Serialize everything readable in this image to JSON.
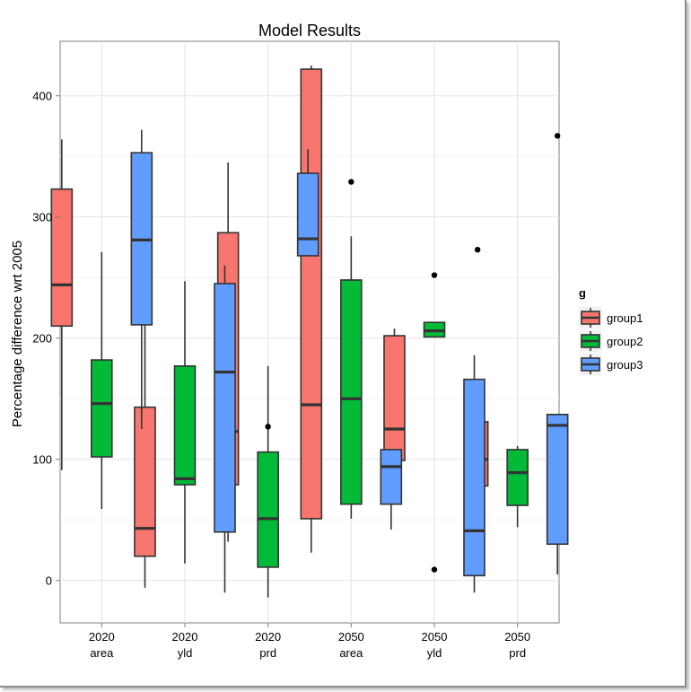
{
  "chart_data": {
    "type": "box",
    "title": "Model Results",
    "xlabel": "",
    "ylabel": "Percentage difference wrt 2005",
    "ylim": [
      -35,
      445
    ],
    "yticks": [
      0,
      100,
      200,
      300,
      400
    ],
    "grid": true,
    "legend": {
      "title": "g",
      "position": "right"
    },
    "categories": [
      {
        "year": "2020",
        "metric": "area"
      },
      {
        "year": "2020",
        "metric": "yld"
      },
      {
        "year": "2020",
        "metric": "prd"
      },
      {
        "year": "2050",
        "metric": "area"
      },
      {
        "year": "2050",
        "metric": "yld"
      },
      {
        "year": "2050",
        "metric": "prd"
      }
    ],
    "series": [
      {
        "name": "group1",
        "color": "#F8766D",
        "boxes": [
          {
            "whisker_low": 91,
            "q1": 210,
            "median": 244,
            "q3": 323,
            "whisker_high": 364,
            "outliers": []
          },
          {
            "whisker_low": -6,
            "q1": 20,
            "median": 43,
            "q3": 143,
            "whisker_high": 235,
            "outliers": []
          },
          {
            "whisker_low": 32,
            "q1": 79,
            "median": 123,
            "q3": 287,
            "whisker_high": 345,
            "outliers": []
          },
          {
            "whisker_low": 23,
            "q1": 51,
            "median": 145,
            "q3": 422,
            "whisker_high": 425,
            "outliers": []
          },
          {
            "whisker_low": 89,
            "q1": 99,
            "median": 125,
            "q3": 202,
            "whisker_high": 208,
            "outliers": []
          },
          {
            "whisker_low": 34,
            "q1": 78,
            "median": 100,
            "q3": 131,
            "whisker_high": 131,
            "outliers": [
              273
            ]
          }
        ]
      },
      {
        "name": "group2",
        "color": "#00BA38",
        "boxes": [
          {
            "whisker_low": 59,
            "q1": 102,
            "median": 146,
            "q3": 182,
            "whisker_high": 271,
            "outliers": []
          },
          {
            "whisker_low": 14,
            "q1": 79,
            "median": 84,
            "q3": 177,
            "whisker_high": 247,
            "outliers": []
          },
          {
            "whisker_low": -14,
            "q1": 11,
            "median": 51,
            "q3": 106,
            "whisker_high": 177,
            "outliers": [
              127
            ]
          },
          {
            "whisker_low": 51,
            "q1": 63,
            "median": 150,
            "q3": 248,
            "whisker_high": 284,
            "outliers": [
              329
            ]
          },
          {
            "whisker_low": 201,
            "q1": 201,
            "median": 206,
            "q3": 213,
            "whisker_high": 213,
            "outliers": [
              9,
              252
            ]
          },
          {
            "whisker_low": 44,
            "q1": 62,
            "median": 89,
            "q3": 108,
            "whisker_high": 111,
            "outliers": []
          }
        ]
      },
      {
        "name": "group3",
        "color": "#619CFF",
        "boxes": [
          {
            "whisker_low": 125,
            "q1": 211,
            "median": 281,
            "q3": 353,
            "whisker_high": 372,
            "outliers": []
          },
          {
            "whisker_low": -10,
            "q1": 40,
            "median": 172,
            "q3": 245,
            "whisker_high": 260,
            "outliers": []
          },
          {
            "whisker_low": 268,
            "q1": 268,
            "median": 282,
            "q3": 336,
            "whisker_high": 356,
            "outliers": []
          },
          {
            "whisker_low": 42,
            "q1": 63,
            "median": 94,
            "q3": 108,
            "whisker_high": 108,
            "outliers": []
          },
          {
            "whisker_low": -10,
            "q1": 4,
            "median": 41,
            "q3": 166,
            "whisker_high": 186,
            "outliers": []
          },
          {
            "whisker_low": 5,
            "q1": 30,
            "median": 128,
            "q3": 137,
            "whisker_high": 137,
            "outliers": [
              367
            ]
          }
        ]
      }
    ]
  }
}
